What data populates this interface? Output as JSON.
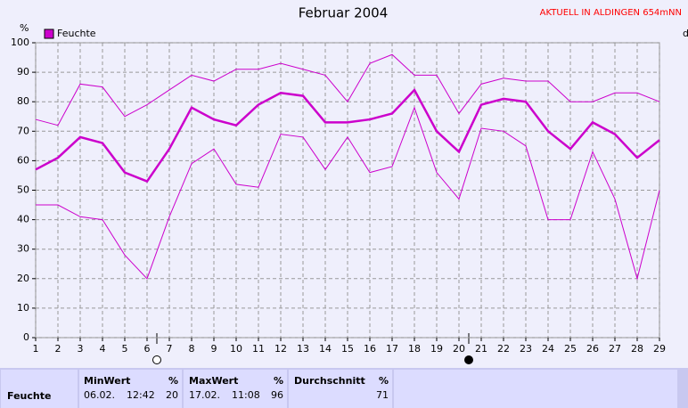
{
  "header": {
    "status": "AKTUELL IN ALDINGEN 654mNN",
    "edge_label": "d"
  },
  "chart_data": {
    "type": "line",
    "title": "Februar 2004",
    "y_label": "%",
    "x": [
      1,
      2,
      3,
      4,
      5,
      6,
      7,
      8,
      9,
      10,
      11,
      12,
      13,
      14,
      15,
      16,
      17,
      18,
      19,
      20,
      21,
      22,
      23,
      24,
      25,
      26,
      27,
      28,
      29
    ],
    "xlim": [
      1,
      29
    ],
    "xticks": [
      1,
      2,
      3,
      4,
      5,
      6,
      7,
      8,
      9,
      10,
      11,
      12,
      13,
      14,
      15,
      16,
      17,
      18,
      19,
      20,
      21,
      22,
      23,
      24,
      25,
      26,
      27,
      28,
      29
    ],
    "ylim": [
      0,
      100
    ],
    "yticks": [
      0,
      10,
      20,
      30,
      40,
      50,
      60,
      70,
      80,
      90,
      100
    ],
    "grid": true,
    "legend": "top-left",
    "series": [
      {
        "name": "Feuchte",
        "color": "#cc00cc",
        "line_width": 2.5,
        "values": [
          57,
          61,
          68,
          66,
          56,
          53,
          64,
          78,
          74,
          72,
          79,
          83,
          82,
          73,
          73,
          74,
          76,
          84,
          70,
          63,
          79,
          81,
          80,
          70,
          64,
          73,
          69,
          61,
          67
        ]
      },
      {
        "color": "#cc00cc",
        "line_width": 1,
        "values": [
          74,
          72,
          86,
          85,
          75,
          79,
          84,
          89,
          87,
          91,
          91,
          93,
          91,
          89,
          80,
          93,
          96,
          89,
          89,
          76,
          86,
          88,
          87,
          87,
          80,
          80,
          83,
          83,
          80
        ]
      },
      {
        "color": "#cc00cc",
        "line_width": 1,
        "values": [
          45,
          45,
          41,
          40,
          28,
          20,
          41,
          59,
          64,
          52,
          51,
          69,
          68,
          57,
          68,
          56,
          58,
          78,
          56,
          47,
          71,
          70,
          65,
          40,
          40,
          63,
          47,
          20,
          50
        ]
      }
    ]
  },
  "summary": {
    "row_label": "Feuchte",
    "columns": [
      {
        "title": "MinWert",
        "unit": "%",
        "date": "06.02.",
        "time": "12:42",
        "value": 20
      },
      {
        "title": "MaxWert",
        "unit": "%",
        "date": "17.02.",
        "time": "11:08",
        "value": 96
      },
      {
        "title": "Durchschnitt",
        "unit": "%",
        "value": 71
      }
    ]
  }
}
